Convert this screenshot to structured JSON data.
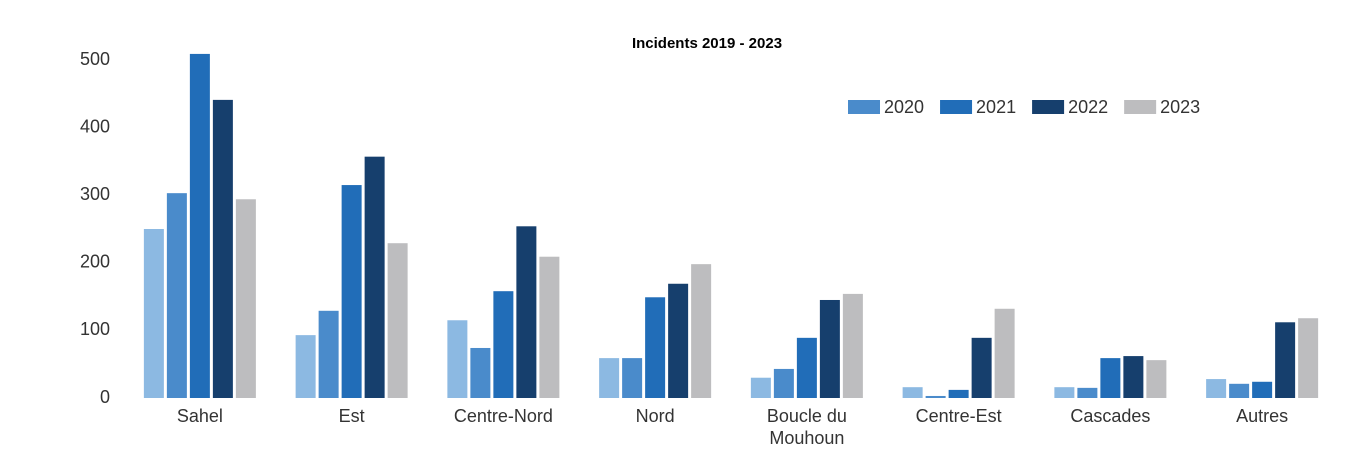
{
  "chart_data": {
    "type": "bar",
    "title": "Incidents 2019 - 2023",
    "categories": [
      "Sahel",
      "Est",
      "Centre-Nord",
      "Nord",
      "Boucle du Mouhoun",
      "Centre-Est",
      "Cascades",
      "Autres"
    ],
    "series": [
      {
        "color": "#8cb9e2",
        "values": [
          250,
          93,
          115,
          59,
          30,
          16,
          16,
          28
        ]
      },
      {
        "name": "2020",
        "color": "#4a8bcb",
        "values": [
          303,
          129,
          74,
          59,
          43,
          3,
          15,
          21
        ]
      },
      {
        "name": "2021",
        "color": "#216db8",
        "values": [
          509,
          315,
          158,
          149,
          89,
          12,
          59,
          24
        ]
      },
      {
        "name": "2022",
        "color": "#163f6d",
        "values": [
          441,
          357,
          254,
          169,
          145,
          89,
          62,
          112
        ]
      },
      {
        "name": "2023",
        "color": "#bdbdbf",
        "values": [
          294,
          229,
          209,
          198,
          154,
          132,
          56,
          118
        ]
      }
    ],
    "ylim": [
      0,
      500
    ],
    "yticks": [
      0,
      100,
      200,
      300,
      400,
      500
    ],
    "legend": "top-right"
  }
}
